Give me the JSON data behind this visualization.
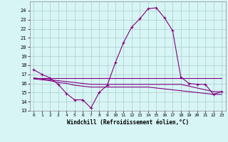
{
  "xlabel": "Windchill (Refroidissement éolien,°C)",
  "hours": [
    0,
    1,
    2,
    3,
    4,
    5,
    6,
    7,
    8,
    9,
    10,
    11,
    12,
    13,
    14,
    15,
    16,
    17,
    18,
    19,
    20,
    21,
    22,
    23
  ],
  "line1": [
    17.5,
    17.0,
    16.6,
    15.9,
    14.9,
    14.2,
    14.2,
    13.3,
    15.0,
    15.8,
    18.3,
    20.5,
    22.2,
    23.1,
    24.2,
    24.3,
    23.2,
    21.8,
    16.7,
    16.0,
    15.9,
    15.9,
    14.8,
    15.1
  ],
  "line2": [
    16.6,
    16.6,
    16.6,
    16.6,
    16.6,
    16.6,
    16.6,
    16.6,
    16.6,
    16.6,
    16.6,
    16.6,
    16.6,
    16.6,
    16.6,
    16.6,
    16.6,
    16.6,
    16.6,
    16.6,
    16.6,
    16.6,
    16.6,
    16.6
  ],
  "line3": [
    16.6,
    16.5,
    16.4,
    16.3,
    16.2,
    16.1,
    16.0,
    15.9,
    15.9,
    15.9,
    15.9,
    15.9,
    15.9,
    15.9,
    15.9,
    15.9,
    15.9,
    15.9,
    15.9,
    15.7,
    15.5,
    15.3,
    15.1,
    15.1
  ],
  "line4": [
    16.5,
    16.4,
    16.3,
    16.1,
    16.0,
    15.8,
    15.7,
    15.6,
    15.6,
    15.6,
    15.6,
    15.6,
    15.6,
    15.6,
    15.6,
    15.5,
    15.4,
    15.3,
    15.2,
    15.1,
    15.0,
    14.9,
    14.8,
    14.8
  ],
  "line_color": "#800080",
  "bg_color": "#d8f5f5",
  "grid_color": "#aacccc",
  "ylim": [
    13,
    25
  ],
  "yticks": [
    13,
    14,
    15,
    16,
    17,
    18,
    19,
    20,
    21,
    22,
    23,
    24
  ],
  "xticks": [
    0,
    1,
    2,
    3,
    4,
    5,
    6,
    7,
    8,
    9,
    10,
    11,
    12,
    13,
    14,
    15,
    16,
    17,
    18,
    19,
    20,
    21,
    22,
    23
  ]
}
